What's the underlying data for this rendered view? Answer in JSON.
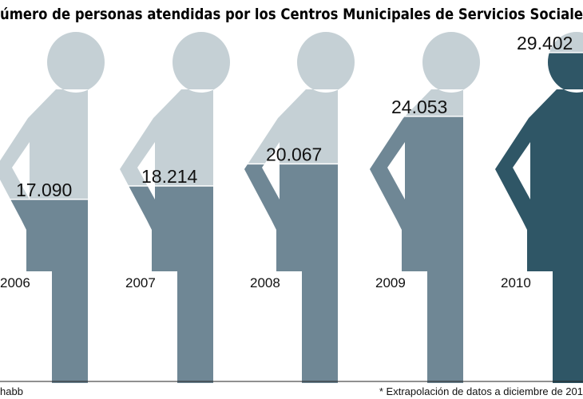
{
  "chart_data": {
    "type": "pictogram",
    "title": "úmero de personas atendidas por los Centros Municipales de Servicios Sociale",
    "categories": [
      "2006",
      "2007",
      "2008",
      "2009",
      "2010"
    ],
    "values": [
      17090,
      18214,
      20067,
      24053,
      29402
    ],
    "value_labels": [
      "17.090",
      "18.214",
      "20.067",
      "24.053",
      "29.402"
    ],
    "colors": [
      "#6f8795",
      "#6f8795",
      "#6f8795",
      "#6f8795",
      "#2f5666"
    ],
    "background_color": "#c5d0d5",
    "ylim": [
      0,
      30000
    ]
  },
  "footer": {
    "source": "habb",
    "note": "* Extrapolación de datos a diciembre de 201"
  }
}
